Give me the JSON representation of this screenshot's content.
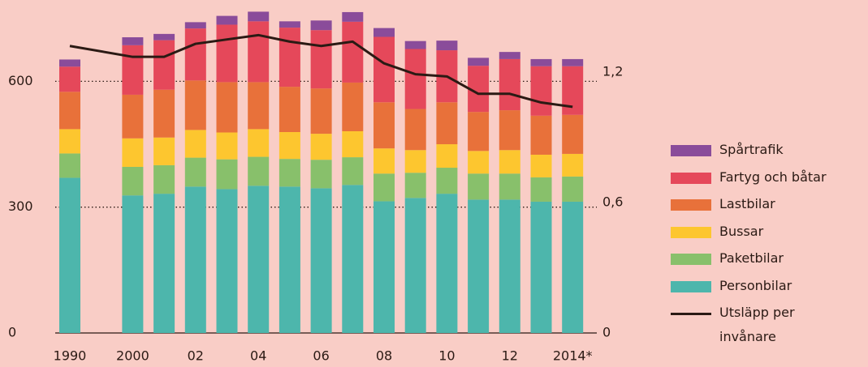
{
  "chart_data": {
    "type": "bar",
    "stacked": true,
    "categories": [
      "1990",
      "2000",
      null,
      "02",
      null,
      "04",
      null,
      "06",
      null,
      "08",
      null,
      "10",
      null,
      "12",
      null,
      "2014*"
    ],
    "series": [
      {
        "name": "Personbilar",
        "color": "#4db6ac",
        "values": [
          370,
          328,
          332,
          349,
          343,
          351,
          349,
          345,
          353,
          314,
          322,
          332,
          318,
          318,
          313,
          313
        ]
      },
      {
        "name": "Paketbilar",
        "color": "#88c06b",
        "values": [
          58,
          68,
          68,
          69,
          71,
          69,
          66,
          68,
          66,
          66,
          60,
          62,
          62,
          62,
          58,
          60
        ]
      },
      {
        "name": "Bussar",
        "color": "#fdc62f",
        "values": [
          58,
          68,
          66,
          66,
          64,
          66,
          64,
          62,
          62,
          60,
          54,
          56,
          54,
          56,
          54,
          54
        ]
      },
      {
        "name": "Lastbilar",
        "color": "#e8713a",
        "values": [
          89,
          104,
          114,
          118,
          120,
          112,
          108,
          108,
          116,
          110,
          98,
          100,
          93,
          95,
          93,
          93
        ]
      },
      {
        "name": "Fartyg och båtar",
        "color": "#e5485a",
        "values": [
          60,
          118,
          118,
          124,
          137,
          145,
          141,
          139,
          145,
          156,
          143,
          124,
          110,
          122,
          118,
          116
        ]
      },
      {
        "name": "Spårtrafik",
        "color": "#8a4c9a",
        "values": [
          17,
          19,
          15,
          15,
          21,
          23,
          15,
          23,
          23,
          21,
          19,
          23,
          19,
          17,
          17,
          17
        ]
      },
      {
        "name": "Utsläpp per invånare",
        "color": "#2b1a14",
        "type": "line",
        "axis": "y2",
        "values": [
          1.32,
          1.27,
          1.27,
          1.33,
          1.35,
          1.37,
          1.34,
          1.32,
          1.34,
          1.24,
          1.19,
          1.18,
          1.1,
          1.1,
          1.06,
          1.04
        ]
      }
    ],
    "ylim": [
      0,
      790
    ],
    "yticks": [
      0,
      300,
      600
    ],
    "y2lim": [
      0,
      1.524
    ],
    "y2ticks": [
      0,
      {
        "value": 0.6,
        "label": "0,6"
      },
      {
        "value": 1.2,
        "label": "1,2"
      }
    ],
    "grid": true,
    "legend": "right"
  }
}
